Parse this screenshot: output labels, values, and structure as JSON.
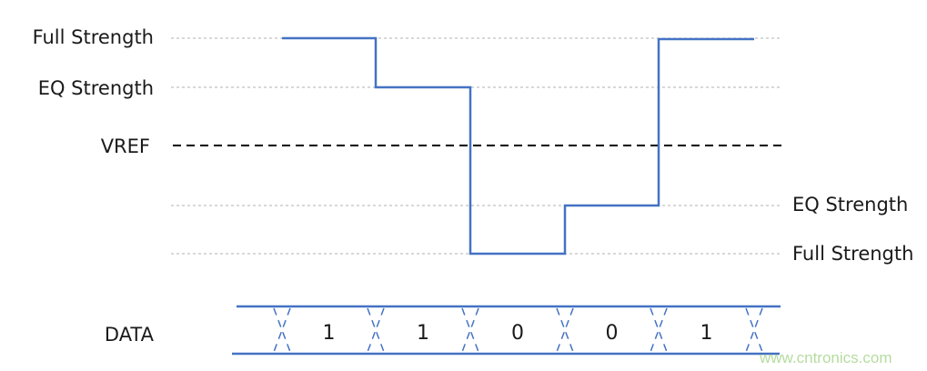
{
  "labels": {
    "left_full": "Full Strength",
    "left_eq": "EQ Strength",
    "vref": "VREF",
    "right_eq": "EQ Strength",
    "right_full": "Full Strength",
    "data": "DATA"
  },
  "bits": [
    "1",
    "1",
    "0",
    "0",
    "1"
  ],
  "watermark": "www.cntronics.com",
  "colors": {
    "signal": "#4472c4",
    "grid": "#b0b0b0",
    "vref": "#000000",
    "watermark": "#b5dca0"
  }
}
